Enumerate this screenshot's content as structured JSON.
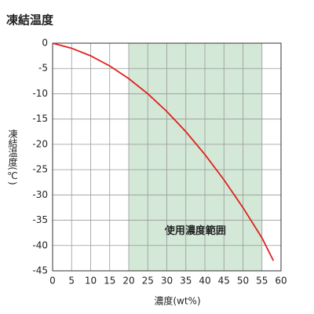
{
  "chart_data": {
    "type": "line",
    "title": "凍結温度",
    "xlabel": "濃度(wt%)",
    "ylabel": "凍結温度(℃)",
    "x": [
      0,
      5,
      10,
      15,
      20,
      25,
      30,
      35,
      40,
      45,
      50,
      55,
      58
    ],
    "series": [
      {
        "color": "#e0201e",
        "values": [
          0,
          -1,
          -2.5,
          -4.5,
          -7,
          -10,
          -13.5,
          -17.5,
          -22,
          -27,
          -32.5,
          -38.5,
          -43
        ]
      }
    ],
    "xlim": [
      0,
      60
    ],
    "xticks": [
      0,
      5,
      10,
      15,
      20,
      25,
      30,
      35,
      40,
      45,
      50,
      55,
      60
    ],
    "ylim": [
      -45,
      0
    ],
    "yticks": [
      0,
      -5,
      -10,
      -15,
      -20,
      -25,
      -30,
      -35,
      -40,
      -45
    ],
    "grid": true,
    "shaded_range": {
      "x": [
        20,
        55
      ],
      "label": "使用濃度範囲",
      "color": "#d3e8d6"
    }
  }
}
